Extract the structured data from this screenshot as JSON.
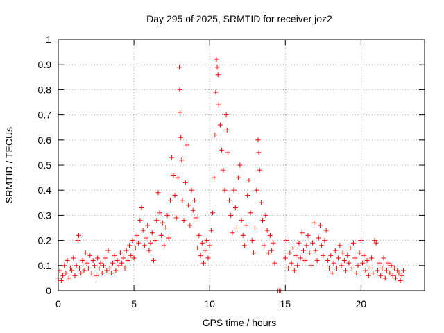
{
  "chart_data": {
    "type": "scatter",
    "title": "Day 295 of 2025, SRMTID for receiver joz2",
    "xlabel": "GPS time / hours",
    "ylabel": "SRMTID / TECUs",
    "xlim": [
      0,
      24.2
    ],
    "ylim": [
      0,
      1
    ],
    "xticks": [
      0,
      5,
      10,
      15,
      20
    ],
    "xtick_labels": [
      "0",
      "5",
      "10",
      "15",
      "20"
    ],
    "yticks": [
      0,
      0.1,
      0.2,
      0.3,
      0.4,
      0.5,
      0.6,
      0.7,
      0.8,
      0.9,
      1
    ],
    "ytick_labels": [
      "0",
      "0.1",
      "0.2",
      "0.3",
      "0.4",
      "0.5",
      "0.6",
      "0.7",
      "0.8",
      "0.9",
      "1"
    ],
    "grid": true,
    "marker": "+",
    "color": "#ff0000",
    "series": [
      {
        "name": "SRMTID",
        "points": [
          [
            0.0,
            0.05
          ],
          [
            0.1,
            0.08
          ],
          [
            0.2,
            0.04
          ],
          [
            0.3,
            0.06
          ],
          [
            0.4,
            0.1
          ],
          [
            0.5,
            0.07
          ],
          [
            0.6,
            0.12
          ],
          [
            0.7,
            0.05
          ],
          [
            0.8,
            0.09
          ],
          [
            0.9,
            0.08
          ],
          [
            1.0,
            0.13
          ],
          [
            1.1,
            0.06
          ],
          [
            1.2,
            0.1
          ],
          [
            1.3,
            0.2
          ],
          [
            1.35,
            0.22
          ],
          [
            1.4,
            0.09
          ],
          [
            1.5,
            0.07
          ],
          [
            1.6,
            0.12
          ],
          [
            1.7,
            0.08
          ],
          [
            1.8,
            0.15
          ],
          [
            1.9,
            0.11
          ],
          [
            2.0,
            0.09
          ],
          [
            2.1,
            0.14
          ],
          [
            2.2,
            0.07
          ],
          [
            2.3,
            0.12
          ],
          [
            2.4,
            0.1
          ],
          [
            2.5,
            0.06
          ],
          [
            2.6,
            0.13
          ],
          [
            2.7,
            0.09
          ],
          [
            2.8,
            0.11
          ],
          [
            2.9,
            0.07
          ],
          [
            3.0,
            0.1
          ],
          [
            3.1,
            0.13
          ],
          [
            3.2,
            0.08
          ],
          [
            3.3,
            0.16
          ],
          [
            3.4,
            0.09
          ],
          [
            3.5,
            0.07
          ],
          [
            3.6,
            0.11
          ],
          [
            3.7,
            0.14
          ],
          [
            3.8,
            0.08
          ],
          [
            3.9,
            0.12
          ],
          [
            4.0,
            0.1
          ],
          [
            4.1,
            0.15
          ],
          [
            4.2,
            0.11
          ],
          [
            4.3,
            0.13
          ],
          [
            4.4,
            0.09
          ],
          [
            4.5,
            0.16
          ],
          [
            4.6,
            0.12
          ],
          [
            4.7,
            0.18
          ],
          [
            4.8,
            0.14
          ],
          [
            4.9,
            0.2
          ],
          [
            5.0,
            0.13
          ],
          [
            5.1,
            0.17
          ],
          [
            5.2,
            0.22
          ],
          [
            5.3,
            0.19
          ],
          [
            5.4,
            0.28
          ],
          [
            5.5,
            0.33
          ],
          [
            5.6,
            0.24
          ],
          [
            5.7,
            0.18
          ],
          [
            5.8,
            0.21
          ],
          [
            5.9,
            0.26
          ],
          [
            6.0,
            0.16
          ],
          [
            6.1,
            0.19
          ],
          [
            6.2,
            0.23
          ],
          [
            6.3,
            0.12
          ],
          [
            6.4,
            0.2
          ],
          [
            6.5,
            0.28
          ],
          [
            6.6,
            0.39
          ],
          [
            6.7,
            0.31
          ],
          [
            6.8,
            0.22
          ],
          [
            6.9,
            0.27
          ],
          [
            7.0,
            0.18
          ],
          [
            7.1,
            0.25
          ],
          [
            7.2,
            0.3
          ],
          [
            7.3,
            0.21
          ],
          [
            7.4,
            0.36
          ],
          [
            7.5,
            0.53
          ],
          [
            7.6,
            0.46
          ],
          [
            7.7,
            0.38
          ],
          [
            7.8,
            0.29
          ],
          [
            7.9,
            0.45
          ],
          [
            8.0,
            0.89
          ],
          [
            8.02,
            0.8
          ],
          [
            8.05,
            0.71
          ],
          [
            8.1,
            0.61
          ],
          [
            8.15,
            0.52
          ],
          [
            8.2,
            0.36
          ],
          [
            8.3,
            0.28
          ],
          [
            8.4,
            0.43
          ],
          [
            8.5,
            0.58
          ],
          [
            8.6,
            0.34
          ],
          [
            8.7,
            0.26
          ],
          [
            8.8,
            0.4
          ],
          [
            8.9,
            0.32
          ],
          [
            9.0,
            0.36
          ],
          [
            9.1,
            0.29
          ],
          [
            9.2,
            0.17
          ],
          [
            9.3,
            0.22
          ],
          [
            9.4,
            0.14
          ],
          [
            9.5,
            0.19
          ],
          [
            9.6,
            0.11
          ],
          [
            9.7,
            0.16
          ],
          [
            9.8,
            0.2
          ],
          [
            9.9,
            0.13
          ],
          [
            10.0,
            0.18
          ],
          [
            10.1,
            0.24
          ],
          [
            10.2,
            0.31
          ],
          [
            10.3,
            0.45
          ],
          [
            10.35,
            0.62
          ],
          [
            10.4,
            0.79
          ],
          [
            10.45,
            0.92
          ],
          [
            10.5,
            0.89
          ],
          [
            10.55,
            0.86
          ],
          [
            10.6,
            0.74
          ],
          [
            10.7,
            0.66
          ],
          [
            10.8,
            0.56
          ],
          [
            10.9,
            0.48
          ],
          [
            11.0,
            0.4
          ],
          [
            11.1,
            0.7
          ],
          [
            11.15,
            0.64
          ],
          [
            11.2,
            0.55
          ],
          [
            11.3,
            0.36
          ],
          [
            11.4,
            0.3
          ],
          [
            11.5,
            0.23
          ],
          [
            11.6,
            0.4
          ],
          [
            11.7,
            0.33
          ],
          [
            11.8,
            0.25
          ],
          [
            11.9,
            0.45
          ],
          [
            12.0,
            0.5
          ],
          [
            12.1,
            0.28
          ],
          [
            12.2,
            0.22
          ],
          [
            12.3,
            0.18
          ],
          [
            12.4,
            0.26
          ],
          [
            12.5,
            0.38
          ],
          [
            12.6,
            0.44
          ],
          [
            12.7,
            0.31
          ],
          [
            12.8,
            0.2
          ],
          [
            12.9,
            0.15
          ],
          [
            13.0,
            0.25
          ],
          [
            13.1,
            0.4
          ],
          [
            13.2,
            0.6
          ],
          [
            13.25,
            0.55
          ],
          [
            13.3,
            0.48
          ],
          [
            13.4,
            0.35
          ],
          [
            13.5,
            0.28
          ],
          [
            13.6,
            0.18
          ],
          [
            13.7,
            0.3
          ],
          [
            13.8,
            0.24
          ],
          [
            13.9,
            0.15
          ],
          [
            14.0,
            0.22
          ],
          [
            14.1,
            0.16
          ],
          [
            14.2,
            0.19
          ],
          [
            14.3,
            0.11
          ],
          [
            14.5,
            0.0
          ],
          [
            14.6,
            0.0
          ],
          [
            14.7,
            0.0
          ],
          [
            15.0,
            0.13
          ],
          [
            15.1,
            0.2
          ],
          [
            15.2,
            0.09
          ],
          [
            15.3,
            0.15
          ],
          [
            15.4,
            0.11
          ],
          [
            15.5,
            0.17
          ],
          [
            15.6,
            0.08
          ],
          [
            15.7,
            0.14
          ],
          [
            15.8,
            0.1
          ],
          [
            15.9,
            0.19
          ],
          [
            16.0,
            0.13
          ],
          [
            16.1,
            0.23
          ],
          [
            16.2,
            0.16
          ],
          [
            16.3,
            0.12
          ],
          [
            16.4,
            0.18
          ],
          [
            16.5,
            0.22
          ],
          [
            16.6,
            0.15
          ],
          [
            16.7,
            0.1
          ],
          [
            16.8,
            0.19
          ],
          [
            16.9,
            0.27
          ],
          [
            17.0,
            0.16
          ],
          [
            17.1,
            0.12
          ],
          [
            17.2,
            0.21
          ],
          [
            17.3,
            0.26
          ],
          [
            17.4,
            0.18
          ],
          [
            17.5,
            0.14
          ],
          [
            17.6,
            0.2
          ],
          [
            17.7,
            0.24
          ],
          [
            17.8,
            0.12
          ],
          [
            17.9,
            0.09
          ],
          [
            18.0,
            0.14
          ],
          [
            18.1,
            0.07
          ],
          [
            18.2,
            0.11
          ],
          [
            18.3,
            0.16
          ],
          [
            18.4,
            0.09
          ],
          [
            18.5,
            0.13
          ],
          [
            18.6,
            0.18
          ],
          [
            18.7,
            0.1
          ],
          [
            18.8,
            0.15
          ],
          [
            18.9,
            0.12
          ],
          [
            19.0,
            0.08
          ],
          [
            19.1,
            0.14
          ],
          [
            19.2,
            0.11
          ],
          [
            19.3,
            0.17
          ],
          [
            19.4,
            0.09
          ],
          [
            19.5,
            0.19
          ],
          [
            19.6,
            0.13
          ],
          [
            19.7,
            0.07
          ],
          [
            19.8,
            0.1
          ],
          [
            19.9,
            0.15
          ],
          [
            20.0,
            0.2
          ],
          [
            20.1,
            0.11
          ],
          [
            20.2,
            0.14
          ],
          [
            20.3,
            0.08
          ],
          [
            20.4,
            0.12
          ],
          [
            20.5,
            0.06
          ],
          [
            20.6,
            0.09
          ],
          [
            20.7,
            0.13
          ],
          [
            20.8,
            0.07
          ],
          [
            20.9,
            0.2
          ],
          [
            21.0,
            0.19
          ],
          [
            21.1,
            0.08
          ],
          [
            21.2,
            0.11
          ],
          [
            21.3,
            0.06
          ],
          [
            21.4,
            0.09
          ],
          [
            21.5,
            0.13
          ],
          [
            21.6,
            0.05
          ],
          [
            21.7,
            0.08
          ],
          [
            21.8,
            0.11
          ],
          [
            21.9,
            0.07
          ],
          [
            22.0,
            0.1
          ],
          [
            22.1,
            0.06
          ],
          [
            22.2,
            0.09
          ],
          [
            22.3,
            0.05
          ],
          [
            22.4,
            0.08
          ],
          [
            22.5,
            0.07
          ],
          [
            22.6,
            0.04
          ],
          [
            22.7,
            0.06
          ],
          [
            22.8,
            0.08
          ]
        ]
      }
    ]
  }
}
